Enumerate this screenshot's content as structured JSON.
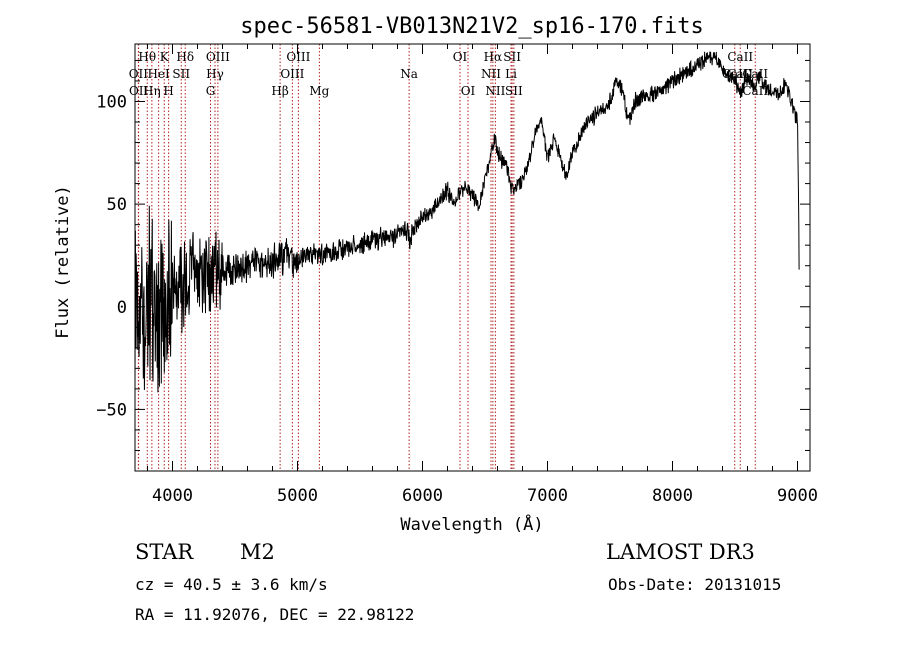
{
  "chart_data": {
    "type": "line",
    "title": "spec-56581-VB013N21V2_sp16-170.fits",
    "xlabel": "Wavelength (Å)",
    "ylabel": "Flux (relative)",
    "xlim": [
      3700,
      9100
    ],
    "ylim": [
      -80,
      128
    ],
    "xticks": [
      4000,
      5000,
      6000,
      7000,
      8000,
      9000
    ],
    "xtick_labels": [
      "4000",
      "5000",
      "6000",
      "7000",
      "8000",
      "9000"
    ],
    "yticks": [
      -50,
      0,
      50,
      100
    ],
    "ytick_labels": [
      "−50",
      "0",
      "50",
      "100"
    ],
    "spectrum_anchors": [
      [
        3700,
        5
      ],
      [
        3740,
        0
      ],
      [
        3800,
        5
      ],
      [
        3900,
        2
      ],
      [
        4000,
        8
      ],
      [
        4100,
        12
      ],
      [
        4200,
        15
      ],
      [
        4300,
        14
      ],
      [
        4400,
        18
      ],
      [
        4500,
        18
      ],
      [
        4600,
        20
      ],
      [
        4700,
        20
      ],
      [
        4800,
        22
      ],
      [
        4900,
        25
      ],
      [
        5000,
        22
      ],
      [
        5100,
        26
      ],
      [
        5200,
        26
      ],
      [
        5300,
        27
      ],
      [
        5400,
        28
      ],
      [
        5500,
        30
      ],
      [
        5600,
        32
      ],
      [
        5700,
        33
      ],
      [
        5800,
        35
      ],
      [
        5870,
        38
      ],
      [
        5900,
        33
      ],
      [
        5950,
        40
      ],
      [
        6050,
        45
      ],
      [
        6150,
        52
      ],
      [
        6200,
        57
      ],
      [
        6250,
        50
      ],
      [
        6300,
        55
      ],
      [
        6350,
        58
      ],
      [
        6400,
        55
      ],
      [
        6450,
        50
      ],
      [
        6500,
        62
      ],
      [
        6550,
        75
      ],
      [
        6580,
        82
      ],
      [
        6600,
        75
      ],
      [
        6630,
        72
      ],
      [
        6680,
        68
      ],
      [
        6700,
        60
      ],
      [
        6730,
        55
      ],
      [
        6800,
        62
      ],
      [
        6850,
        70
      ],
      [
        6900,
        85
      ],
      [
        6950,
        92
      ],
      [
        7000,
        72
      ],
      [
        7050,
        82
      ],
      [
        7100,
        72
      ],
      [
        7150,
        63
      ],
      [
        7200,
        75
      ],
      [
        7300,
        88
      ],
      [
        7400,
        95
      ],
      [
        7500,
        100
      ],
      [
        7550,
        110
      ],
      [
        7600,
        105
      ],
      [
        7650,
        90
      ],
      [
        7700,
        100
      ],
      [
        7800,
        103
      ],
      [
        7900,
        105
      ],
      [
        8000,
        110
      ],
      [
        8100,
        114
      ],
      [
        8200,
        118
      ],
      [
        8300,
        122
      ],
      [
        8350,
        120
      ],
      [
        8400,
        116
      ],
      [
        8450,
        112
      ],
      [
        8500,
        110
      ],
      [
        8550,
        104
      ],
      [
        8600,
        112
      ],
      [
        8650,
        108
      ],
      [
        8700,
        112
      ],
      [
        8750,
        108
      ],
      [
        8800,
        106
      ],
      [
        8850,
        103
      ],
      [
        8900,
        108
      ],
      [
        8950,
        100
      ],
      [
        9000,
        90
      ],
      [
        9010,
        40
      ],
      [
        9015,
        0
      ]
    ],
    "emission_lines": [
      {
        "label": "Hθ",
        "wave": 3798,
        "row": 0
      },
      {
        "label": "K",
        "wave": 3934,
        "row": 0
      },
      {
        "label": "Hδ",
        "wave": 4102,
        "row": 0
      },
      {
        "label": "OIII",
        "wave": 4363,
        "row": 0
      },
      {
        "label": "OIII",
        "wave": 5007,
        "row": 0
      },
      {
        "label": "OI",
        "wave": 6300,
        "row": 0
      },
      {
        "label": "Hα",
        "wave": 6563,
        "row": 0
      },
      {
        "label": "SII",
        "wave": 6717,
        "row": 0
      },
      {
        "label": "CaII",
        "wave": 8542,
        "row": 0
      },
      {
        "label": "OII",
        "wave": 3727,
        "row": 1
      },
      {
        "label": "HeI",
        "wave": 3889,
        "row": 1
      },
      {
        "label": "SII",
        "wave": 4070,
        "row": 1
      },
      {
        "label": "Hγ",
        "wave": 4340,
        "row": 1
      },
      {
        "label": "OIII",
        "wave": 4959,
        "row": 1
      },
      {
        "label": "Na",
        "wave": 5893,
        "row": 1
      },
      {
        "label": "NII",
        "wave": 6548,
        "row": 1
      },
      {
        "label": "Li",
        "wave": 6708,
        "row": 1
      },
      {
        "label": "CaII",
        "wave": 8498,
        "row": 1
      },
      {
        "label": "CaII",
        "wave": 8542,
        "row": 1
      },
      {
        "label": "OII",
        "wave": 3729,
        "row": 2
      },
      {
        "label": "Hη",
        "wave": 3835,
        "row": 2
      },
      {
        "label": "H",
        "wave": 3969,
        "row": 2
      },
      {
        "label": "G",
        "wave": 4304,
        "row": 2
      },
      {
        "label": "Hβ",
        "wave": 4861,
        "row": 2
      },
      {
        "label": "Mg",
        "wave": 5175,
        "row": 2
      },
      {
        "label": "OI",
        "wave": 6364,
        "row": 2
      },
      {
        "label": "NII",
        "wave": 6583,
        "row": 2
      },
      {
        "label": "SII",
        "wave": 6731,
        "row": 2
      },
      {
        "label": "CaII",
        "wave": 8662,
        "row": 2
      },
      {
        "label": "CaII",
        "wave": 8662,
        "row": 1
      }
    ],
    "annotations": {
      "object_class": "STAR",
      "subclass": "M2",
      "survey": "LAMOST DR3",
      "cz": "cz = 40.5 ± 3.6 km/s",
      "obs_date": "Obs-Date: 20131015",
      "coords": "RA =  11.92076, DEC =  22.98122"
    }
  }
}
